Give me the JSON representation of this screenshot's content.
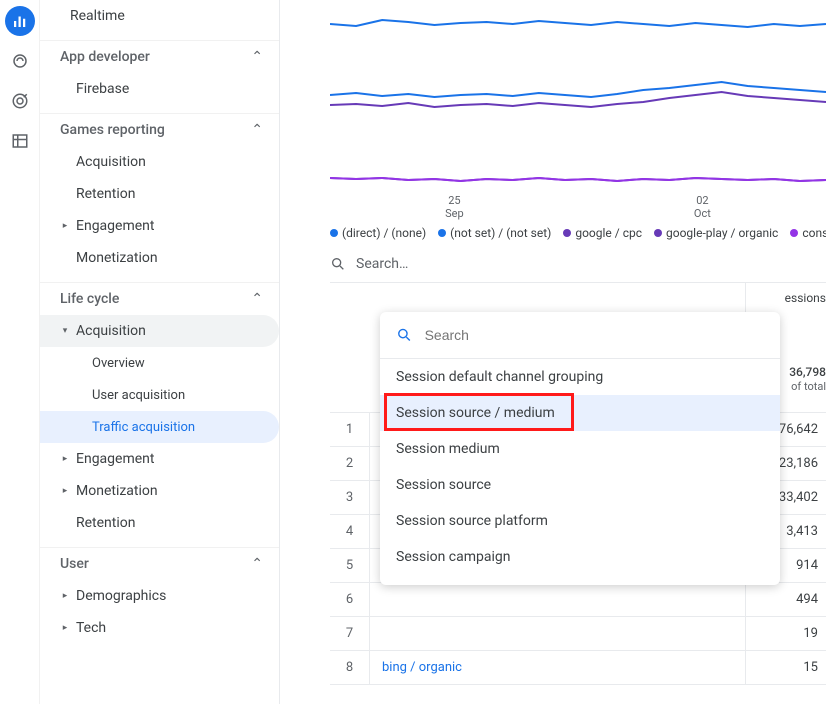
{
  "rail": {
    "items": [
      "bar-chart",
      "gauge",
      "target",
      "table"
    ]
  },
  "sidebar": {
    "realtime": "Realtime",
    "app_dev_head": "App developer",
    "firebase": "Firebase",
    "games_head": "Games reporting",
    "g_acq": "Acquisition",
    "g_ret": "Retention",
    "g_eng": "Engagement",
    "g_mon": "Monetization",
    "life_head": "Life cycle",
    "acq": "Acquisition",
    "overview": "Overview",
    "user_acq": "User acquisition",
    "traffic_acq": "Traffic acquisition",
    "eng": "Engagement",
    "mon": "Monetization",
    "ret": "Retention",
    "user_head": "User",
    "demo": "Demographics",
    "tech": "Tech"
  },
  "chart": {
    "x_ticks": [
      {
        "day": "25",
        "mon": "Sep"
      },
      {
        "day": "02",
        "mon": "Oct"
      }
    ],
    "series": {
      "direct": {
        "color": "#1a73e8",
        "label": "(direct) / (none)",
        "values": [
          24,
          26,
          20,
          22,
          25,
          23,
          22,
          24,
          21,
          23,
          25,
          22,
          24,
          26,
          23,
          25,
          27,
          24,
          26,
          24
        ]
      },
      "notset": {
        "color": "#1a73e8",
        "label": "(not set) / (not set)",
        "values": [
          95,
          93,
          96,
          94,
          97,
          95,
          94,
          96,
          93,
          95,
          97,
          94,
          90,
          88,
          85,
          82,
          86,
          88,
          90,
          92
        ]
      },
      "cpc": {
        "color": "#673ab7",
        "label": "google / cpc",
        "values": [
          105,
          104,
          106,
          103,
          107,
          105,
          104,
          106,
          103,
          105,
          107,
          104,
          102,
          98,
          95,
          92,
          96,
          98,
          100,
          102
        ]
      },
      "organic": {
        "color": "#673ab7",
        "label": "google-play / organic",
        "values": [
          178,
          179,
          178,
          180,
          179,
          181,
          179,
          180,
          178,
          180,
          179,
          181,
          179,
          180,
          178,
          179,
          180,
          179,
          181,
          180
        ]
      },
      "console": {
        "color": "#9334e6",
        "label": "console.fire",
        "values": [
          178,
          179,
          178,
          180,
          179,
          181,
          179,
          180,
          178,
          180,
          179,
          181,
          179,
          180,
          178,
          179,
          180,
          179,
          181,
          180
        ]
      }
    }
  },
  "search_placeholder": "Search…",
  "sessions_header": "essions",
  "total_sessions": "36,798",
  "of_total": "of total",
  "rows": [
    {
      "idx": "1",
      "label": "",
      "val": "76,642"
    },
    {
      "idx": "2",
      "label": "",
      "val": "23,186"
    },
    {
      "idx": "3",
      "label": "",
      "val": "33,402"
    },
    {
      "idx": "4",
      "label": "",
      "val": "3,413"
    },
    {
      "idx": "5",
      "label": "",
      "val": "914"
    },
    {
      "idx": "6",
      "label": "",
      "val": "494"
    },
    {
      "idx": "7",
      "label": "",
      "val": "19"
    },
    {
      "idx": "8",
      "label": "bing / organic",
      "val": "15"
    }
  ],
  "dropdown": {
    "search": "Search",
    "options": [
      "Session default channel grouping",
      "Session source / medium",
      "Session medium",
      "Session source",
      "Session source platform",
      "Session campaign"
    ],
    "selected_index": 1
  }
}
